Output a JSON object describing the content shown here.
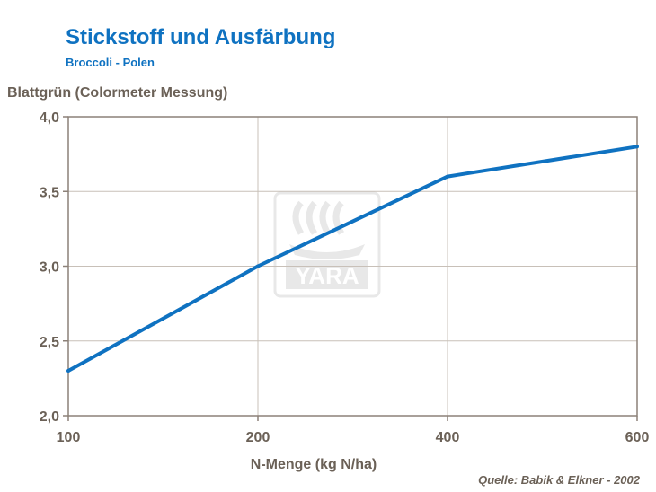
{
  "chart_data": {
    "type": "line",
    "title": "Stickstoff und Ausfärbung",
    "subtitle": "Broccoli  - Polen",
    "ylabel": "Blattgrün (Colormeter Messung)",
    "xlabel": "N-Menge (kg N/ha)",
    "x_categories": [
      "100",
      "200",
      "400",
      "600"
    ],
    "y_ticks": [
      "2,0",
      "2,5",
      "3,0",
      "3,5",
      "4,0"
    ],
    "ylim": [
      2.0,
      4.0
    ],
    "grid": true,
    "series": [
      {
        "values": [
          2.3,
          3.0,
          3.6,
          3.8
        ]
      }
    ],
    "source": "Quelle:  Babik & Elkner - 2002",
    "watermark": "YARA",
    "colors": {
      "line": "#0f72c1",
      "grid": "#c8c0b8",
      "axis": "#8c8178",
      "text": "#6b6157",
      "title": "#0f72c1"
    }
  }
}
